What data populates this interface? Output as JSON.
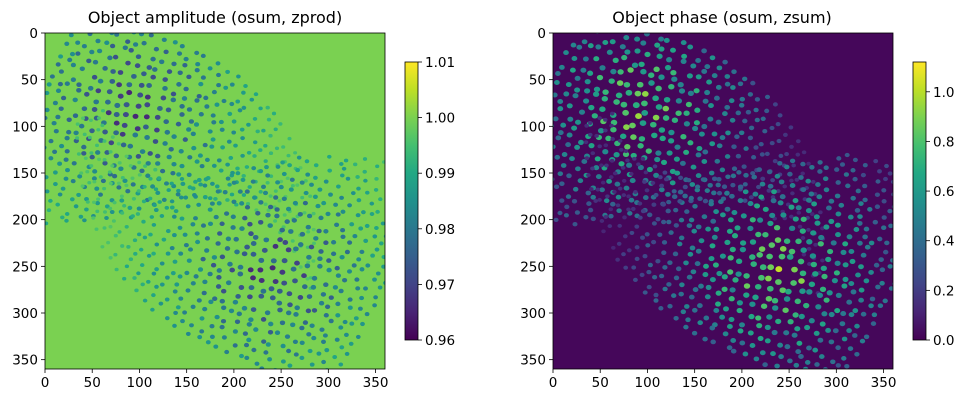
{
  "chart_data": [
    {
      "type": "heatmap",
      "title": "Object amplitude (osum, zprod)",
      "xlabel": "",
      "ylabel": "",
      "x_ticks": [
        "0",
        "50",
        "100",
        "150",
        "200",
        "250",
        "300",
        "350"
      ],
      "y_ticks": [
        "0",
        "50",
        "100",
        "150",
        "200",
        "250",
        "300",
        "350"
      ],
      "xlim": [
        0,
        360
      ],
      "ylim": [
        360,
        0
      ],
      "colormap": "viridis",
      "colorbar": {
        "range": [
          0.96,
          1.01
        ],
        "ticks": [
          "0.96",
          "0.97",
          "0.98",
          "0.99",
          "1.00",
          "1.01"
        ]
      },
      "pattern": {
        "background": 1.0,
        "feature": "dips",
        "feature_extreme": 0.962,
        "centers": [
          [
            240,
            255
          ],
          [
            90,
            80
          ]
        ]
      }
    },
    {
      "type": "heatmap",
      "title": "Object phase (osum, zsum)",
      "xlabel": "",
      "ylabel": "",
      "x_ticks": [
        "0",
        "50",
        "100",
        "150",
        "200",
        "250",
        "300",
        "350"
      ],
      "y_ticks": [
        "0",
        "50",
        "100",
        "150",
        "200",
        "250",
        "300",
        "350"
      ],
      "xlim": [
        0,
        360
      ],
      "ylim": [
        360,
        0
      ],
      "colormap": "viridis",
      "colorbar": {
        "range": [
          0.0,
          1.12
        ],
        "ticks": [
          "0.0",
          "0.2",
          "0.4",
          "0.6",
          "0.8",
          "1.0"
        ]
      },
      "pattern": {
        "background": 0.02,
        "feature": "peaks",
        "feature_extreme": 1.05,
        "centers": [
          [
            240,
            255
          ],
          [
            90,
            80
          ]
        ]
      }
    }
  ]
}
